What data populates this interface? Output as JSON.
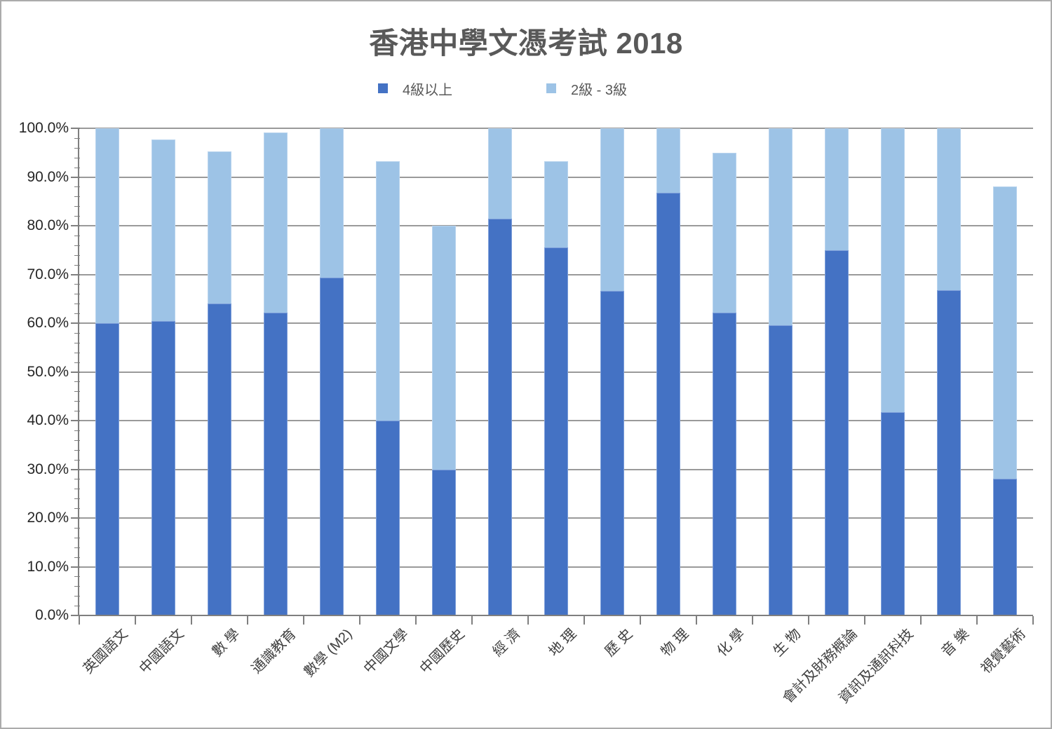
{
  "title": "香港中學文憑考試 2018",
  "legend": [
    {
      "label": "4級以上",
      "color": "#4472C4",
      "x": 537
    },
    {
      "label": "2級 - 3級",
      "color": "#9DC3E6",
      "x": 777
    }
  ],
  "chart_data": {
    "type": "bar",
    "stacked": true,
    "title": "香港中學文憑考試 2018",
    "categories": [
      "英國語文",
      "中國語文",
      "數 學",
      "通識教育",
      "數學 (M2)",
      "中國文學",
      "中國歷史",
      "經 濟",
      "地 理",
      "歷 史",
      "物 理",
      "化 學",
      "生 物",
      "會計及財務概論",
      "資訊及通訊科技",
      "音 樂",
      "視覺藝術"
    ],
    "series": [
      {
        "name": "4級以上",
        "color": "#4472C4",
        "values": [
          60.0,
          60.5,
          64.0,
          62.2,
          69.3,
          40.0,
          30.0,
          81.4,
          75.5,
          66.6,
          86.8,
          62.1,
          59.5,
          75.0,
          41.8,
          66.7,
          28.0
        ]
      },
      {
        "name": "2級 - 3級",
        "color": "#9DC3E6",
        "values": [
          40.0,
          37.2,
          31.3,
          36.9,
          30.7,
          53.2,
          50.0,
          18.6,
          17.8,
          33.4,
          13.2,
          32.8,
          40.5,
          25.0,
          58.2,
          33.3,
          60.0
        ]
      }
    ],
    "stack_totals": [
      100.0,
      97.7,
      95.3,
      99.1,
      100.0,
      93.2,
      80.0,
      100.0,
      93.3,
      100.0,
      100.0,
      94.9,
      100.0,
      100.0,
      100.0,
      100.0,
      88.0
    ],
    "xlabel": "",
    "ylabel": "",
    "ylim": [
      0,
      100
    ],
    "y_ticks": [
      "100.0%",
      "90.0%",
      "80.0%",
      "70.0%",
      "60.0%",
      "50.0%",
      "40.0%",
      "30.0%",
      "20.0%",
      "10.0%",
      "0.0%"
    ],
    "y_major_step": 10,
    "y_minor_step": 2,
    "grid": true,
    "legend_position": "top"
  },
  "colors": {
    "series_dark": "#4472C4",
    "series_light": "#9DC3E6",
    "gridline": "#9A9A9A",
    "axis": "#7F7F7F",
    "title_text": "#595959",
    "tick_text": "#262626",
    "category_text": "#404040",
    "border": "#ABABAB",
    "background": "#FFFFFF"
  }
}
